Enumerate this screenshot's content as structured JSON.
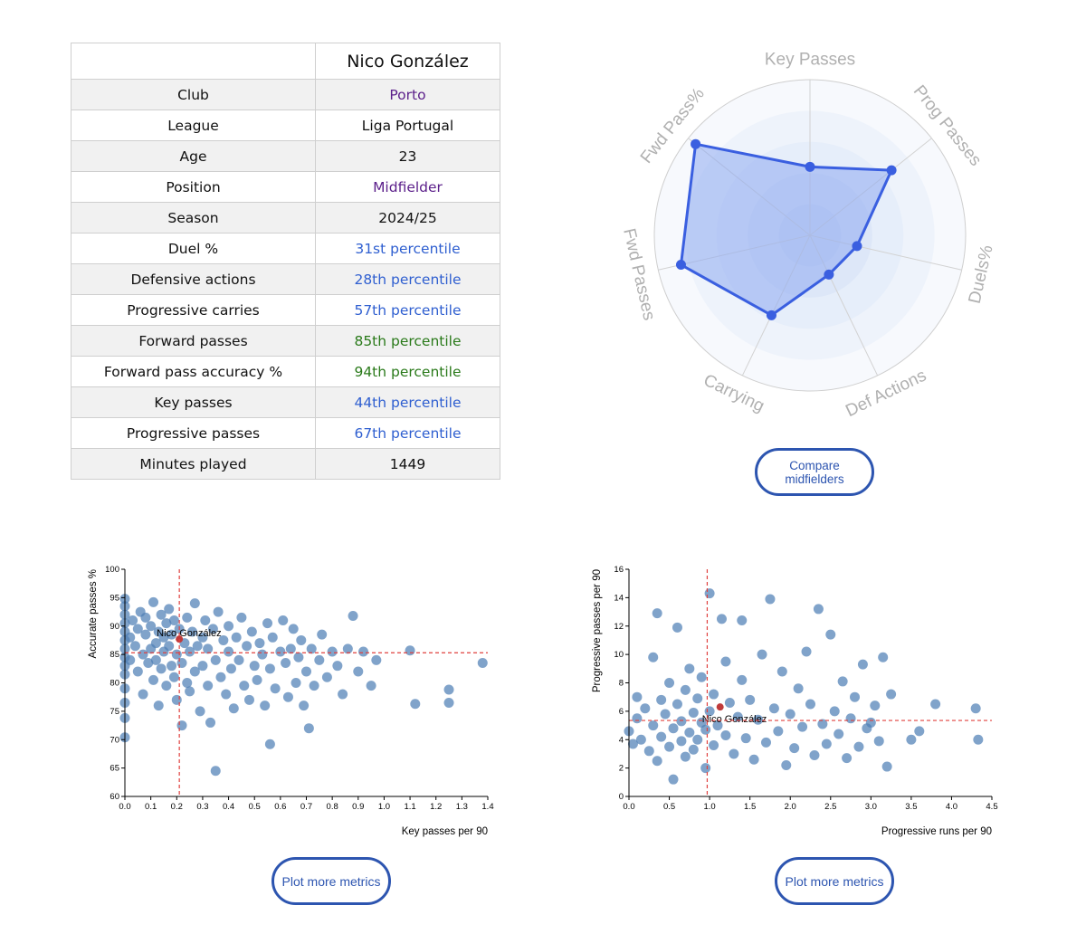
{
  "player": {
    "name": "Nico González",
    "rows": [
      {
        "label": "Club",
        "value": "Porto",
        "color": "#5b1f8a"
      },
      {
        "label": "League",
        "value": "Liga Portugal",
        "color": "#111111"
      },
      {
        "label": "Age",
        "value": "23",
        "color": "#111111"
      },
      {
        "label": "Position",
        "value": "Midfielder",
        "color": "#5b1f8a"
      },
      {
        "label": "Season",
        "value": "2024/25",
        "color": "#111111"
      },
      {
        "label": "Duel %",
        "value": "31st percentile",
        "color": "#2f5fd0"
      },
      {
        "label": "Defensive actions",
        "value": "28th percentile",
        "color": "#2f5fd0"
      },
      {
        "label": "Progressive carries",
        "value": "57th percentile",
        "color": "#2f5fd0"
      },
      {
        "label": "Forward passes",
        "value": "85th percentile",
        "color": "#2a7a1a"
      },
      {
        "label": "Forward pass accuracy %",
        "value": "94th percentile",
        "color": "#2a7a1a"
      },
      {
        "label": "Key passes",
        "value": "44th percentile",
        "color": "#2f5fd0"
      },
      {
        "label": "Progressive passes",
        "value": "67th percentile",
        "color": "#2f5fd0"
      },
      {
        "label": "Minutes played",
        "value": "1449",
        "color": "#111111"
      }
    ]
  },
  "radar": {
    "axes": [
      {
        "label": "Key Passes",
        "value": 44
      },
      {
        "label": "Prog Passes",
        "value": 67
      },
      {
        "label": "Duels%",
        "value": 31
      },
      {
        "label": "Def Actions",
        "value": 28
      },
      {
        "label": "Carrying",
        "value": 57
      },
      {
        "label": "Fwd Passes",
        "value": 85
      },
      {
        "label": "Fwd Pass%",
        "value": 94
      }
    ],
    "fill_color": "#8eaaf0",
    "line_color": "#3a5fe0"
  },
  "buttons": {
    "compare_line1": "Compare",
    "compare_line2": "midfielders",
    "plot_more_left": "Plot more metrics",
    "plot_more_right": "Plot more metrics"
  },
  "chart_data": [
    {
      "type": "scatter",
      "xlabel": "Key passes per 90",
      "ylabel": "Accurate passes %",
      "xlim": [
        0,
        1.4
      ],
      "ylim": [
        60,
        100
      ],
      "xticks": [
        "0.0",
        "0.1",
        "0.2",
        "0.3",
        "0.4",
        "0.5",
        "0.6",
        "0.7",
        "0.8",
        "0.9",
        "1.0",
        "1.1",
        "1.2",
        "1.3",
        "1.4"
      ],
      "yticks": [
        "60",
        "65",
        "70",
        "75",
        "80",
        "85",
        "90",
        "95",
        "100"
      ],
      "reference_x": 0.21,
      "reference_y": 85.3,
      "highlight": {
        "name": "Nico González",
        "x": 0.21,
        "y": 87.7
      },
      "points": [
        [
          0.0,
          70.4
        ],
        [
          0.0,
          73.8
        ],
        [
          0.0,
          76.5
        ],
        [
          0.0,
          79.0
        ],
        [
          0.0,
          81.5
        ],
        [
          0.0,
          83.0
        ],
        [
          0.0,
          84.5
        ],
        [
          0.0,
          86.0
        ],
        [
          0.0,
          87.5
        ],
        [
          0.0,
          89.0
        ],
        [
          0.0,
          90.5
        ],
        [
          0.0,
          92.0
        ],
        [
          0.0,
          93.5
        ],
        [
          0.0,
          94.8
        ],
        [
          0.02,
          88.0
        ],
        [
          0.02,
          84.0
        ],
        [
          0.03,
          91.0
        ],
        [
          0.04,
          86.5
        ],
        [
          0.05,
          82.0
        ],
        [
          0.05,
          89.5
        ],
        [
          0.06,
          92.5
        ],
        [
          0.07,
          85.0
        ],
        [
          0.07,
          78.0
        ],
        [
          0.08,
          88.5
        ],
        [
          0.08,
          91.5
        ],
        [
          0.09,
          83.5
        ],
        [
          0.1,
          86.0
        ],
        [
          0.1,
          90.0
        ],
        [
          0.11,
          94.2
        ],
        [
          0.11,
          80.5
        ],
        [
          0.12,
          87.0
        ],
        [
          0.12,
          84.0
        ],
        [
          0.13,
          89.0
        ],
        [
          0.13,
          76.0
        ],
        [
          0.14,
          92.0
        ],
        [
          0.14,
          82.5
        ],
        [
          0.15,
          88.0
        ],
        [
          0.15,
          85.5
        ],
        [
          0.16,
          90.5
        ],
        [
          0.16,
          79.5
        ],
        [
          0.17,
          86.5
        ],
        [
          0.17,
          93.0
        ],
        [
          0.18,
          83.0
        ],
        [
          0.18,
          88.5
        ],
        [
          0.19,
          81.0
        ],
        [
          0.19,
          91.0
        ],
        [
          0.2,
          85.0
        ],
        [
          0.2,
          77.0
        ],
        [
          0.21,
          89.5
        ],
        [
          0.22,
          83.5
        ],
        [
          0.22,
          72.5
        ],
        [
          0.23,
          87.0
        ],
        [
          0.24,
          91.5
        ],
        [
          0.24,
          80.0
        ],
        [
          0.25,
          85.5
        ],
        [
          0.25,
          78.5
        ],
        [
          0.26,
          89.0
        ],
        [
          0.27,
          82.0
        ],
        [
          0.27,
          94.0
        ],
        [
          0.28,
          86.5
        ],
        [
          0.29,
          75.0
        ],
        [
          0.3,
          88.0
        ],
        [
          0.3,
          83.0
        ],
        [
          0.31,
          91.0
        ],
        [
          0.32,
          79.5
        ],
        [
          0.32,
          86.0
        ],
        [
          0.33,
          73.0
        ],
        [
          0.34,
          89.5
        ],
        [
          0.35,
          64.5
        ],
        [
          0.35,
          84.0
        ],
        [
          0.36,
          92.5
        ],
        [
          0.37,
          81.0
        ],
        [
          0.38,
          87.5
        ],
        [
          0.39,
          78.0
        ],
        [
          0.4,
          85.5
        ],
        [
          0.4,
          90.0
        ],
        [
          0.41,
          82.5
        ],
        [
          0.42,
          75.5
        ],
        [
          0.43,
          88.0
        ],
        [
          0.44,
          84.0
        ],
        [
          0.45,
          91.5
        ],
        [
          0.46,
          79.5
        ],
        [
          0.47,
          86.5
        ],
        [
          0.48,
          77.0
        ],
        [
          0.49,
          89.0
        ],
        [
          0.5,
          83.0
        ],
        [
          0.51,
          80.5
        ],
        [
          0.52,
          87.0
        ],
        [
          0.53,
          85.0
        ],
        [
          0.54,
          76.0
        ],
        [
          0.55,
          90.5
        ],
        [
          0.56,
          82.5
        ],
        [
          0.56,
          69.2
        ],
        [
          0.57,
          88.0
        ],
        [
          0.58,
          79.0
        ],
        [
          0.6,
          85.5
        ],
        [
          0.61,
          91.0
        ],
        [
          0.62,
          83.5
        ],
        [
          0.63,
          77.5
        ],
        [
          0.64,
          86.0
        ],
        [
          0.65,
          89.5
        ],
        [
          0.66,
          80.0
        ],
        [
          0.67,
          84.5
        ],
        [
          0.68,
          87.5
        ],
        [
          0.69,
          76.0
        ],
        [
          0.7,
          82.0
        ],
        [
          0.71,
          72.0
        ],
        [
          0.72,
          86.0
        ],
        [
          0.73,
          79.5
        ],
        [
          0.75,
          84.0
        ],
        [
          0.76,
          88.5
        ],
        [
          0.78,
          81.0
        ],
        [
          0.8,
          85.5
        ],
        [
          0.82,
          83.0
        ],
        [
          0.84,
          78.0
        ],
        [
          0.86,
          86.0
        ],
        [
          0.88,
          91.8
        ],
        [
          0.9,
          82.0
        ],
        [
          0.92,
          85.5
        ],
        [
          0.95,
          79.5
        ],
        [
          0.97,
          84.0
        ],
        [
          1.1,
          85.7
        ],
        [
          1.12,
          76.3
        ],
        [
          1.25,
          78.8
        ],
        [
          1.25,
          76.5
        ],
        [
          1.38,
          83.5
        ]
      ]
    },
    {
      "type": "scatter",
      "xlabel": "Progressive runs per 90",
      "ylabel": "Progressive passes per 90",
      "xlim": [
        0,
        4.5
      ],
      "ylim": [
        0,
        16
      ],
      "xticks": [
        "0.0",
        "0.5",
        "1.0",
        "1.5",
        "2.0",
        "2.5",
        "3.0",
        "3.5",
        "4.0",
        "4.5"
      ],
      "yticks": [
        "0",
        "2",
        "4",
        "6",
        "8",
        "10",
        "12",
        "14",
        "16"
      ],
      "reference_x": 0.97,
      "reference_y": 5.35,
      "highlight": {
        "name": "Nico González",
        "x": 1.13,
        "y": 6.3
      },
      "points": [
        [
          0.0,
          4.6
        ],
        [
          0.05,
          3.7
        ],
        [
          0.1,
          5.5
        ],
        [
          0.1,
          7.0
        ],
        [
          0.15,
          4.0
        ],
        [
          0.2,
          6.2
        ],
        [
          0.25,
          3.2
        ],
        [
          0.3,
          5.0
        ],
        [
          0.3,
          9.8
        ],
        [
          0.35,
          2.5
        ],
        [
          0.35,
          12.9
        ],
        [
          0.4,
          6.8
        ],
        [
          0.4,
          4.2
        ],
        [
          0.45,
          5.8
        ],
        [
          0.5,
          3.5
        ],
        [
          0.5,
          8.0
        ],
        [
          0.55,
          4.8
        ],
        [
          0.55,
          1.2
        ],
        [
          0.6,
          6.5
        ],
        [
          0.6,
          11.9
        ],
        [
          0.65,
          3.9
        ],
        [
          0.65,
          5.3
        ],
        [
          0.7,
          7.5
        ],
        [
          0.7,
          2.8
        ],
        [
          0.75,
          4.5
        ],
        [
          0.75,
          9.0
        ],
        [
          0.8,
          5.9
        ],
        [
          0.8,
          3.3
        ],
        [
          0.85,
          6.9
        ],
        [
          0.85,
          4.0
        ],
        [
          0.9,
          5.2
        ],
        [
          0.9,
          8.4
        ],
        [
          0.95,
          2.0
        ],
        [
          0.95,
          4.7
        ],
        [
          1.0,
          6.0
        ],
        [
          1.0,
          14.3
        ],
        [
          1.05,
          3.6
        ],
        [
          1.05,
          7.2
        ],
        [
          1.1,
          5.0
        ],
        [
          1.15,
          12.5
        ],
        [
          1.2,
          4.3
        ],
        [
          1.2,
          9.5
        ],
        [
          1.25,
          6.6
        ],
        [
          1.3,
          3.0
        ],
        [
          1.35,
          5.6
        ],
        [
          1.4,
          12.4
        ],
        [
          1.4,
          8.2
        ],
        [
          1.45,
          4.1
        ],
        [
          1.5,
          6.8
        ],
        [
          1.55,
          2.6
        ],
        [
          1.6,
          5.4
        ],
        [
          1.65,
          10.0
        ],
        [
          1.7,
          3.8
        ],
        [
          1.75,
          13.9
        ],
        [
          1.8,
          6.2
        ],
        [
          1.85,
          4.6
        ],
        [
          1.9,
          8.8
        ],
        [
          1.95,
          2.2
        ],
        [
          2.0,
          5.8
        ],
        [
          2.05,
          3.4
        ],
        [
          2.1,
          7.6
        ],
        [
          2.15,
          4.9
        ],
        [
          2.2,
          10.2
        ],
        [
          2.25,
          6.5
        ],
        [
          2.3,
          2.9
        ],
        [
          2.35,
          13.2
        ],
        [
          2.4,
          5.1
        ],
        [
          2.45,
          3.7
        ],
        [
          2.5,
          11.4
        ],
        [
          2.55,
          6.0
        ],
        [
          2.6,
          4.4
        ],
        [
          2.65,
          8.1
        ],
        [
          2.7,
          2.7
        ],
        [
          2.75,
          5.5
        ],
        [
          2.8,
          7.0
        ],
        [
          2.85,
          3.5
        ],
        [
          2.9,
          9.3
        ],
        [
          2.95,
          4.8
        ],
        [
          3.0,
          5.2
        ],
        [
          3.05,
          6.4
        ],
        [
          3.1,
          3.9
        ],
        [
          3.15,
          9.8
        ],
        [
          3.2,
          2.1
        ],
        [
          3.25,
          7.2
        ],
        [
          3.5,
          4.0
        ],
        [
          3.6,
          4.6
        ],
        [
          3.8,
          6.5
        ],
        [
          4.3,
          6.2
        ],
        [
          4.33,
          4.0
        ]
      ]
    }
  ]
}
